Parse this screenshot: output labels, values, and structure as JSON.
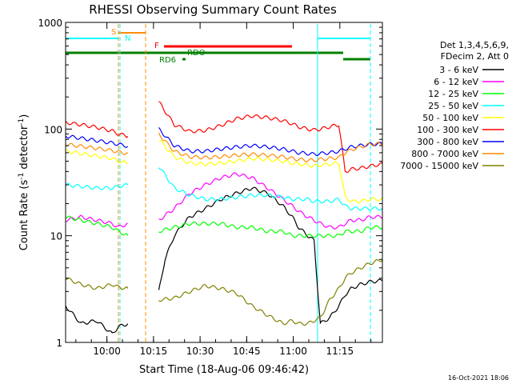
{
  "chart_data": {
    "type": "line",
    "title": "RHESSI Observing Summary Count Rates",
    "xlabel": "Start Time (18-Aug-06 09:46:42)",
    "ylabel_main": "Count Rate (s",
    "ylabel_sup": "-1",
    "ylabel_rest": " detector",
    "ylabel_end": ")",
    "x_scale": "time (minutes after 09:46:42)",
    "xlim": [
      0,
      102
    ],
    "ylim": [
      1,
      1000
    ],
    "y_scale": "log",
    "x_ticks": [
      {
        "label": "10:00",
        "x": 13.3
      },
      {
        "label": "10:15",
        "x": 28.3
      },
      {
        "label": "10:30",
        "x": 43.3
      },
      {
        "label": "10:45",
        "x": 58.3
      },
      {
        "label": "11:00",
        "x": 73.3
      },
      {
        "label": "11:15",
        "x": 88.3
      }
    ],
    "y_ticks": [
      {
        "label": "1",
        "y": 1
      },
      {
        "label": "10",
        "y": 10
      },
      {
        "label": "100",
        "y": 100
      },
      {
        "label": "1000",
        "y": 1000
      }
    ],
    "legend_header": [
      "Det 1,3,4,5,6,9,",
      "FDecim 2, Att 0"
    ],
    "legend_placement": "right",
    "series": [
      {
        "name": "3 - 6 keV",
        "color": "#000000",
        "x": [
          0,
          5,
          10,
          15,
          17,
          20,
          25,
          28,
          30,
          32,
          35,
          38,
          40,
          45,
          50,
          55,
          60,
          65,
          70,
          73,
          75,
          78,
          80,
          82,
          85,
          88,
          90,
          92,
          95,
          98,
          102
        ],
        "y": [
          2.2,
          1.5,
          1.6,
          1.2,
          1.4,
          1.5,
          null,
          null,
          3,
          6,
          10,
          13,
          15,
          18,
          22,
          25,
          28,
          25,
          19,
          15,
          12,
          10,
          9,
          1.5,
          1.7,
          2.2,
          2.8,
          3.2,
          3.5,
          3.7,
          3.8
        ]
      },
      {
        "name": "6 - 12 keV",
        "color": "#ff00ff",
        "x": [
          0,
          5,
          10,
          15,
          17,
          20,
          25,
          28,
          30,
          35,
          40,
          45,
          50,
          55,
          60,
          65,
          70,
          73,
          75,
          78,
          80,
          82,
          85,
          88,
          90,
          92,
          95,
          98,
          102
        ],
        "y": [
          14,
          15,
          14,
          13,
          12,
          13,
          null,
          null,
          14,
          18,
          25,
          30,
          35,
          38,
          35,
          28,
          22,
          19,
          17,
          15,
          14,
          13,
          12,
          12,
          13,
          14,
          14,
          15,
          15
        ]
      },
      {
        "name": "12 - 25 keV",
        "color": "#00ff00",
        "x": [
          0,
          5,
          10,
          15,
          17,
          20,
          25,
          28,
          30,
          35,
          40,
          45,
          50,
          55,
          60,
          65,
          70,
          73,
          75,
          78,
          80,
          82,
          85,
          88,
          90,
          92,
          95,
          98,
          102
        ],
        "y": [
          15,
          14,
          13,
          12,
          11,
          10,
          null,
          null,
          11,
          12,
          13,
          13,
          13,
          12,
          12,
          11,
          11,
          10,
          10,
          10,
          10,
          10,
          10,
          10,
          11,
          11,
          11,
          12,
          12
        ]
      },
      {
        "name": "25 - 50 keV",
        "color": "#00ffff",
        "x": [
          0,
          5,
          10,
          15,
          17,
          20,
          25,
          28,
          30,
          35,
          40,
          45,
          50,
          55,
          60,
          65,
          70,
          73,
          75,
          78,
          80,
          82,
          85,
          88,
          90,
          92,
          95,
          98,
          102
        ],
        "y": [
          30,
          29,
          28,
          28,
          29,
          30,
          null,
          null,
          45,
          28,
          24,
          22,
          22,
          23,
          24,
          24,
          23,
          22,
          22,
          22,
          21,
          21,
          21,
          22,
          19,
          18,
          18,
          18,
          18
        ]
      },
      {
        "name": "50 - 100 keV",
        "color": "#ffff00",
        "x": [
          0,
          5,
          10,
          15,
          17,
          20,
          25,
          28,
          30,
          35,
          40,
          45,
          50,
          55,
          60,
          65,
          70,
          73,
          75,
          78,
          80,
          82,
          85,
          88,
          90,
          92,
          95,
          98,
          102
        ],
        "y": [
          62,
          59,
          56,
          53,
          50,
          48,
          null,
          null,
          80,
          55,
          48,
          47,
          48,
          50,
          53,
          52,
          50,
          48,
          47,
          46,
          45,
          46,
          47,
          48,
          23,
          21,
          21,
          22,
          22
        ]
      },
      {
        "name": "100 - 300 keV",
        "color": "#ff0000",
        "x": [
          0,
          5,
          10,
          15,
          17,
          20,
          25,
          28,
          30,
          35,
          40,
          45,
          50,
          55,
          60,
          65,
          70,
          73,
          75,
          78,
          80,
          82,
          85,
          88,
          90,
          92,
          95,
          98,
          102
        ],
        "y": [
          115,
          110,
          104,
          96,
          90,
          86,
          null,
          null,
          180,
          110,
          95,
          97,
          108,
          125,
          133,
          128,
          120,
          112,
          105,
          100,
          98,
          100,
          105,
          110,
          40,
          42,
          43,
          45,
          47
        ]
      },
      {
        "name": "300 - 800 keV",
        "color": "#0000ff",
        "x": [
          0,
          5,
          10,
          15,
          17,
          20,
          25,
          28,
          30,
          35,
          40,
          45,
          50,
          55,
          60,
          65,
          70,
          73,
          75,
          78,
          80,
          82,
          85,
          88,
          90,
          92,
          95,
          98,
          102
        ],
        "y": [
          86,
          82,
          78,
          74,
          72,
          69,
          null,
          null,
          100,
          70,
          62,
          62,
          65,
          68,
          70,
          68,
          65,
          62,
          60,
          59,
          58,
          59,
          60,
          62,
          65,
          68,
          70,
          72,
          73
        ]
      },
      {
        "name": "800 - 7000 keV",
        "color": "#ff8c00",
        "x": [
          0,
          5,
          10,
          15,
          17,
          20,
          25,
          28,
          30,
          35,
          40,
          45,
          50,
          55,
          60,
          65,
          70,
          73,
          75,
          78,
          80,
          82,
          85,
          88,
          90,
          92,
          95,
          98,
          102
        ],
        "y": [
          72,
          69,
          66,
          63,
          61,
          59,
          null,
          null,
          90,
          62,
          55,
          54,
          55,
          57,
          58,
          57,
          55,
          53,
          52,
          51,
          51,
          52,
          53,
          54,
          60,
          64,
          68,
          72,
          73
        ]
      },
      {
        "name": "7000 - 15000 keV",
        "color": "#808000",
        "x": [
          0,
          5,
          10,
          15,
          17,
          20,
          25,
          28,
          30,
          35,
          40,
          45,
          50,
          55,
          60,
          65,
          70,
          73,
          75,
          78,
          80,
          82,
          85,
          88,
          90,
          92,
          95,
          98,
          102
        ],
        "y": [
          4,
          3.5,
          3.2,
          3.5,
          3.3,
          3.2,
          null,
          null,
          2.5,
          2.6,
          3,
          3.4,
          3.2,
          2.9,
          2.2,
          1.8,
          1.5,
          1.6,
          1.5,
          1.5,
          1.6,
          1.7,
          2.5,
          3.2,
          4,
          4.5,
          5,
          5.5,
          6
        ]
      }
    ],
    "annotations": [
      {
        "text": "S",
        "color": "#ff8c00"
      },
      {
        "text": "N",
        "color": "#00ffff"
      },
      {
        "text": "F",
        "color": "#ff0000"
      },
      {
        "text": "RDO",
        "color": "#008000"
      },
      {
        "text": "RD6",
        "color": "#008000"
      }
    ]
  },
  "footer": {
    "timestamp": "16-Oct-2021 18:06"
  }
}
